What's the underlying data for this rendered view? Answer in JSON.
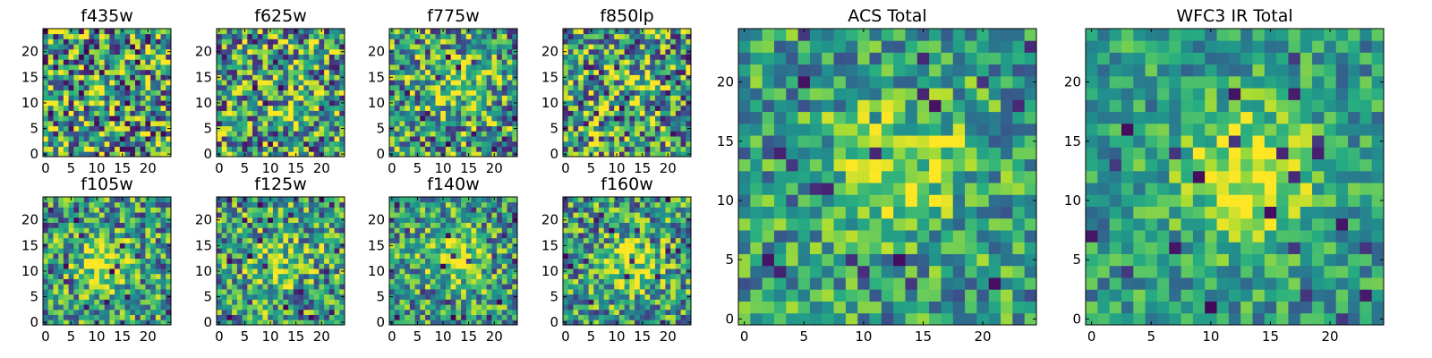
{
  "chart_data": [
    {
      "type": "heatmap",
      "title": "f435w",
      "x_ticks": [
        "0",
        "5",
        "10",
        "15",
        "20"
      ],
      "y_ticks": [
        "0",
        "5",
        "10",
        "15",
        "20"
      ],
      "xlim": [
        0,
        25
      ],
      "ylim": [
        0,
        25
      ],
      "colormap": "viridis",
      "grid_size": 25,
      "seed": 435,
      "blob_center": [
        12,
        12
      ],
      "blob_strength": 0.0,
      "noise": 0.55
    },
    {
      "type": "heatmap",
      "title": "f625w",
      "x_ticks": [
        "0",
        "5",
        "10",
        "15",
        "20"
      ],
      "y_ticks": [
        "0",
        "5",
        "10",
        "15",
        "20"
      ],
      "xlim": [
        0,
        25
      ],
      "ylim": [
        0,
        25
      ],
      "colormap": "viridis",
      "grid_size": 25,
      "seed": 625,
      "blob_center": [
        13,
        12
      ],
      "blob_strength": 0.15,
      "noise": 0.5
    },
    {
      "type": "heatmap",
      "title": "f775w",
      "x_ticks": [
        "0",
        "5",
        "10",
        "15",
        "20"
      ],
      "y_ticks": [
        "0",
        "5",
        "10",
        "15",
        "20"
      ],
      "xlim": [
        0,
        25
      ],
      "ylim": [
        0,
        25
      ],
      "colormap": "viridis",
      "grid_size": 25,
      "seed": 775,
      "blob_center": [
        13,
        13
      ],
      "blob_strength": 0.3,
      "noise": 0.45
    },
    {
      "type": "heatmap",
      "title": "f850lp",
      "x_ticks": [
        "0",
        "5",
        "10",
        "15",
        "20"
      ],
      "y_ticks": [
        "0",
        "5",
        "10",
        "15",
        "20"
      ],
      "xlim": [
        0,
        25
      ],
      "ylim": [
        0,
        25
      ],
      "colormap": "viridis",
      "grid_size": 25,
      "seed": 850,
      "blob_center": [
        13,
        13
      ],
      "blob_strength": 0.2,
      "noise": 0.5
    },
    {
      "type": "heatmap",
      "title": "f105w",
      "x_ticks": [
        "0",
        "5",
        "10",
        "15",
        "20"
      ],
      "y_ticks": [
        "0",
        "5",
        "10",
        "15",
        "20"
      ],
      "xlim": [
        0,
        25
      ],
      "ylim": [
        0,
        25
      ],
      "colormap": "viridis",
      "grid_size": 25,
      "seed": 105,
      "blob_center": [
        12,
        11
      ],
      "blob_strength": 0.35,
      "noise": 0.4
    },
    {
      "type": "heatmap",
      "title": "f125w",
      "x_ticks": [
        "0",
        "5",
        "10",
        "15",
        "20"
      ],
      "y_ticks": [
        "0",
        "5",
        "10",
        "15",
        "20"
      ],
      "xlim": [
        0,
        25
      ],
      "ylim": [
        0,
        25
      ],
      "colormap": "viridis",
      "grid_size": 25,
      "seed": 125,
      "blob_center": [
        12,
        12
      ],
      "blob_strength": 0.3,
      "noise": 0.42
    },
    {
      "type": "heatmap",
      "title": "f140w",
      "x_ticks": [
        "0",
        "5",
        "10",
        "15",
        "20"
      ],
      "y_ticks": [
        "0",
        "5",
        "10",
        "15",
        "20"
      ],
      "xlim": [
        0,
        25
      ],
      "ylim": [
        0,
        25
      ],
      "colormap": "viridis",
      "grid_size": 25,
      "seed": 140,
      "blob_center": [
        13,
        12
      ],
      "blob_strength": 0.4,
      "noise": 0.38
    },
    {
      "type": "heatmap",
      "title": "f160w",
      "x_ticks": [
        "0",
        "5",
        "10",
        "15",
        "20"
      ],
      "y_ticks": [
        "0",
        "5",
        "10",
        "15",
        "20"
      ],
      "xlim": [
        0,
        25
      ],
      "ylim": [
        0,
        25
      ],
      "colormap": "viridis",
      "grid_size": 25,
      "seed": 160,
      "blob_center": [
        13,
        11
      ],
      "blob_strength": 0.4,
      "noise": 0.4
    },
    {
      "type": "heatmap",
      "title": "ACS Total",
      "x_ticks": [
        "0",
        "5",
        "10",
        "15",
        "20"
      ],
      "y_ticks": [
        "0",
        "5",
        "10",
        "15",
        "20"
      ],
      "xlim": [
        0,
        25
      ],
      "ylim": [
        0,
        25
      ],
      "colormap": "viridis",
      "grid_size": 25,
      "seed": 4242,
      "blob_center": [
        13,
        13
      ],
      "blob_strength": 0.35,
      "noise": 0.32
    },
    {
      "type": "heatmap",
      "title": "WFC3 IR Total",
      "x_ticks": [
        "0",
        "5",
        "10",
        "15",
        "20"
      ],
      "y_ticks": [
        "0",
        "5",
        "10",
        "15",
        "20"
      ],
      "xlim": [
        0,
        25
      ],
      "ylim": [
        0,
        25
      ],
      "colormap": "viridis",
      "grid_size": 25,
      "seed": 9090,
      "blob_center": [
        13,
        12
      ],
      "blob_strength": 0.45,
      "noise": 0.25
    }
  ]
}
